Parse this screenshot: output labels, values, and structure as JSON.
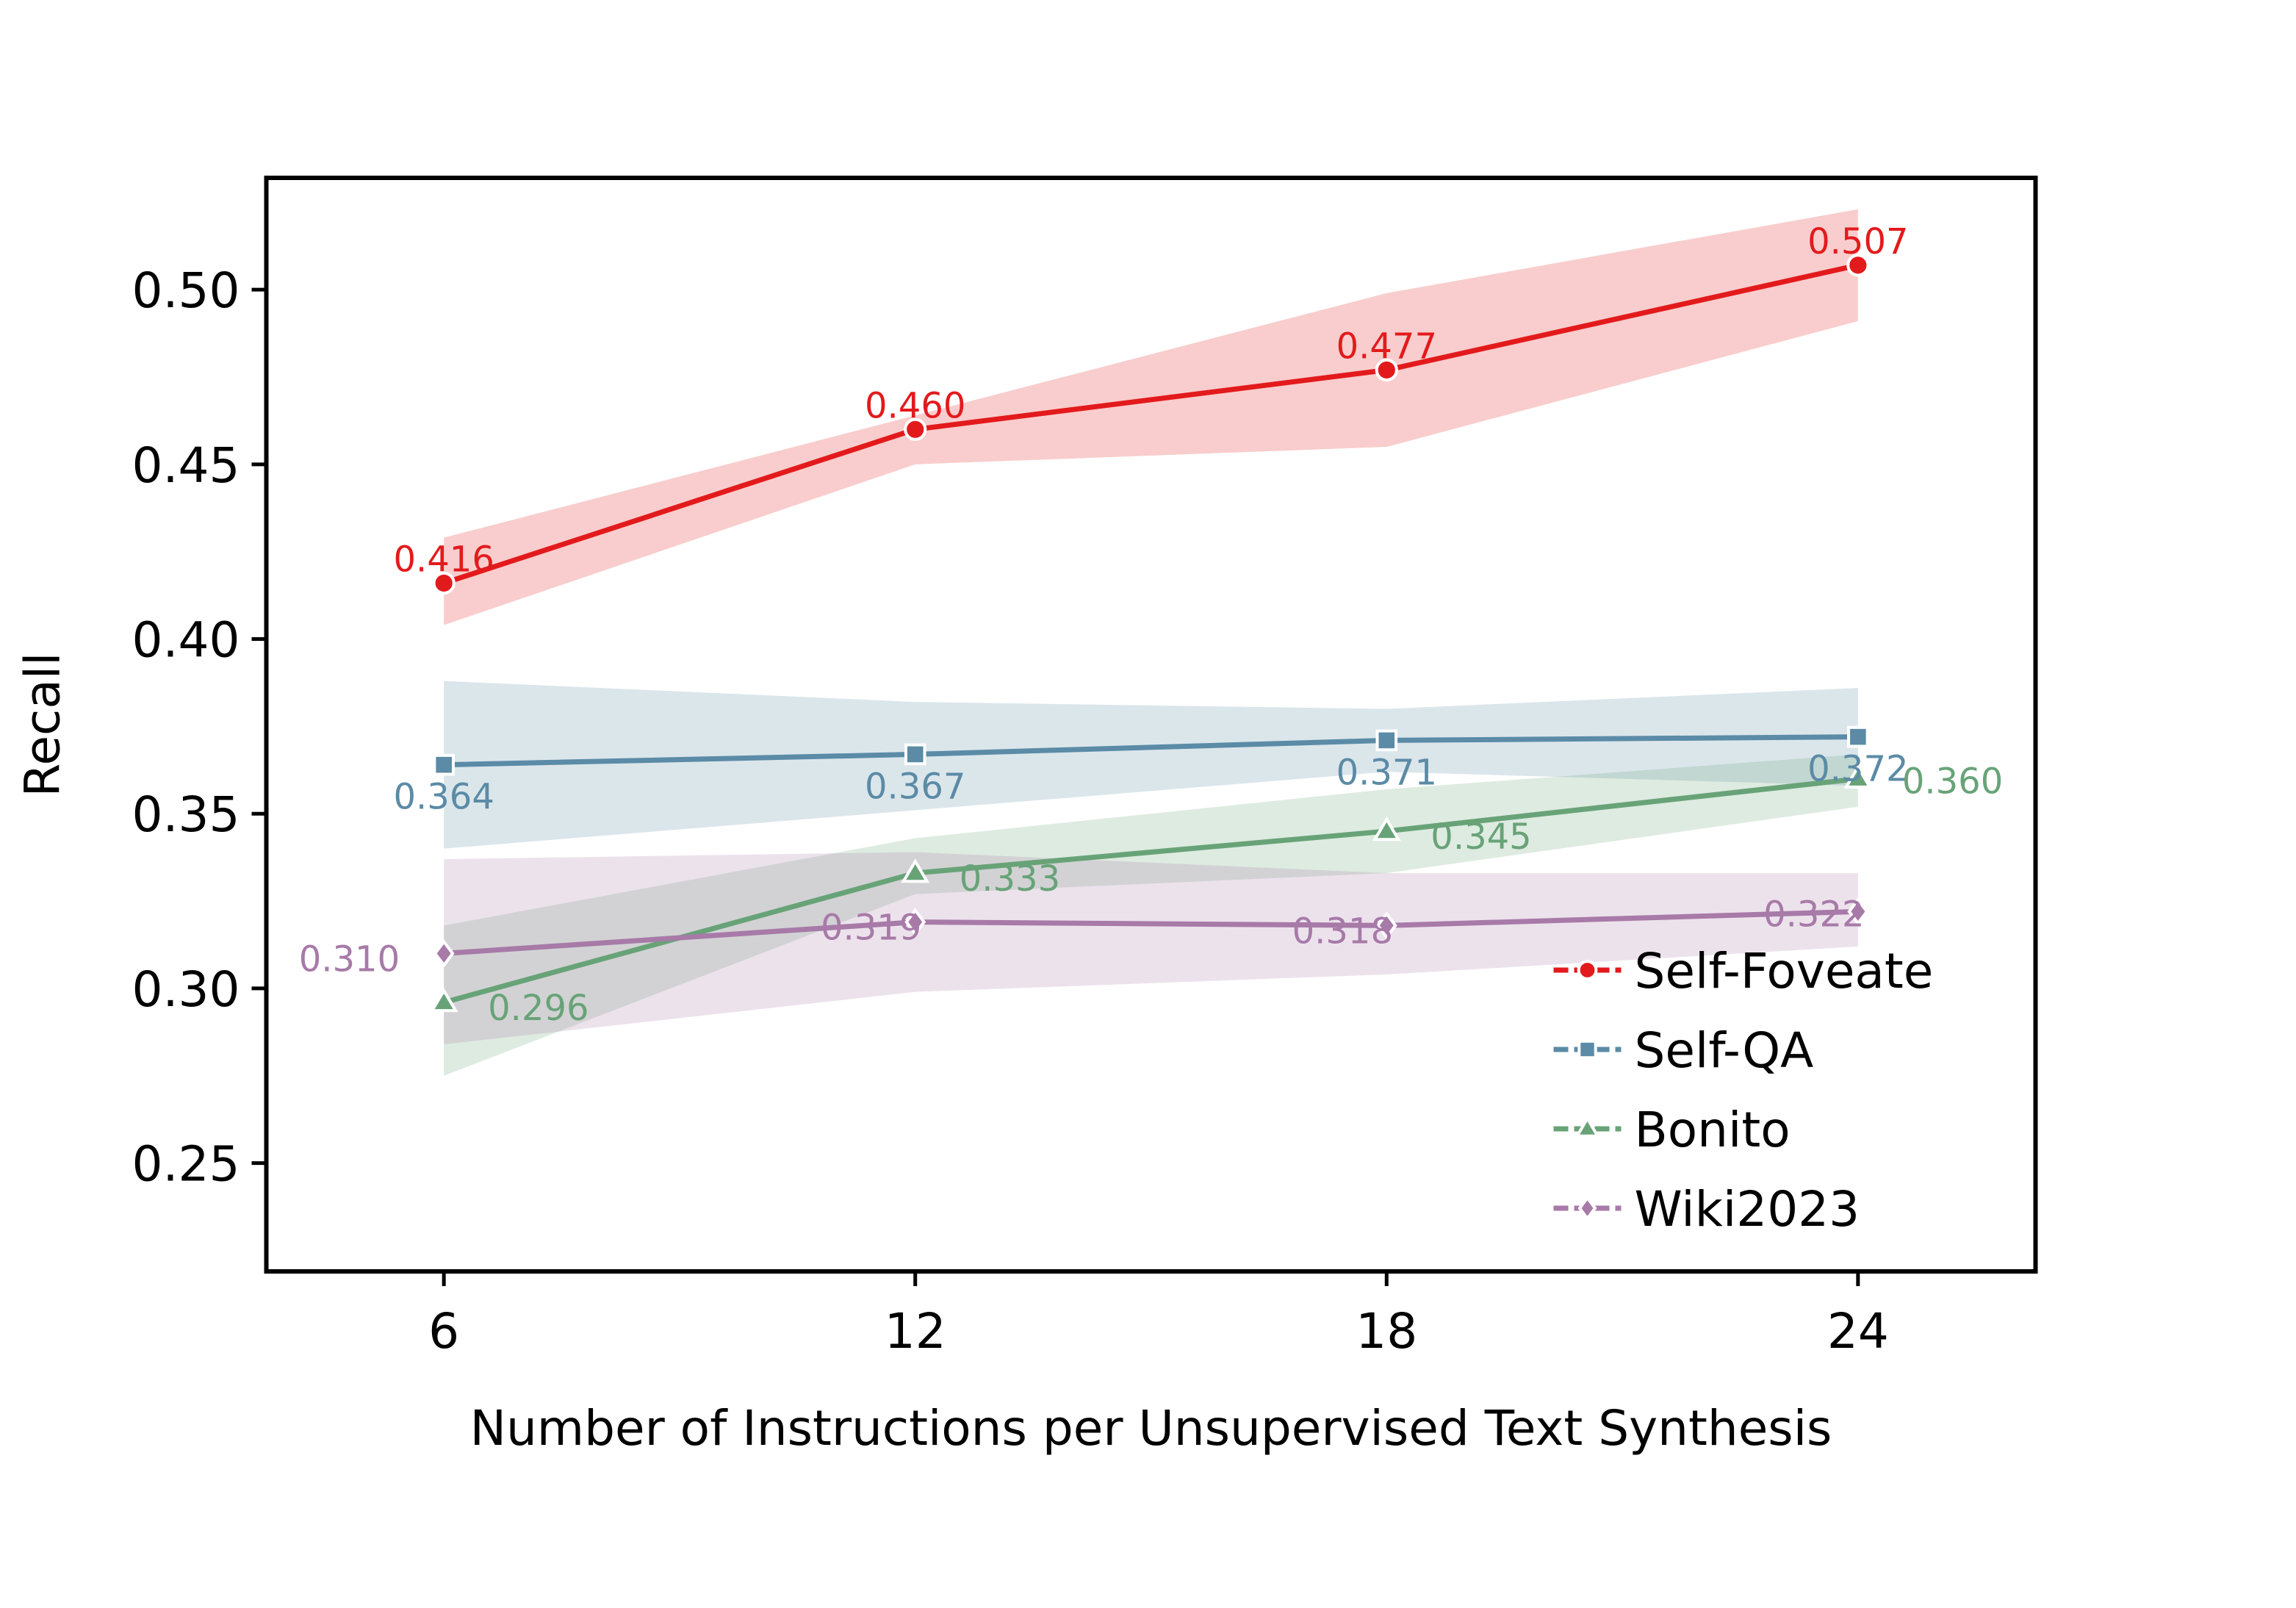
{
  "chart_data": {
    "type": "line",
    "title": "",
    "xlabel": "Number of Instructions per Unsupervised Text Synthesis",
    "ylabel": "Recall",
    "x": [
      6,
      12,
      18,
      24
    ],
    "x_tick_labels": [
      "6",
      "12",
      "18",
      "24"
    ],
    "y_ticks": [
      0.25,
      0.3,
      0.35,
      0.4,
      0.45,
      0.5
    ],
    "y_tick_labels": [
      "0.25",
      "0.30",
      "0.35",
      "0.40",
      "0.45",
      "0.50"
    ],
    "xlim": [
      3.74,
      26.26
    ],
    "ylim": [
      0.219,
      0.532
    ],
    "grid": false,
    "legend_position": "bottom-right",
    "series": [
      {
        "name": "Self-Foveate",
        "color": "#e31a1c",
        "marker": "circle",
        "values": [
          0.416,
          0.46,
          0.477,
          0.507
        ],
        "labels": [
          "0.416",
          "0.460",
          "0.477",
          "0.507"
        ],
        "band_upper": [
          0.429,
          0.464,
          0.499,
          0.523
        ],
        "band_lower": [
          0.404,
          0.45,
          0.455,
          0.491
        ]
      },
      {
        "name": "Self-QA",
        "color": "#5b8ba6",
        "marker": "square",
        "values": [
          0.364,
          0.367,
          0.371,
          0.372
        ],
        "labels": [
          "0.364",
          "0.367",
          "0.371",
          "0.372"
        ],
        "band_upper": [
          0.388,
          0.382,
          0.38,
          0.386
        ],
        "band_lower": [
          0.34,
          0.351,
          0.362,
          0.358
        ]
      },
      {
        "name": "Bonito",
        "color": "#68a378",
        "marker": "triangle",
        "values": [
          0.296,
          0.333,
          0.345,
          0.36
        ],
        "labels": [
          "0.296",
          "0.333",
          "0.345",
          "0.360"
        ],
        "band_upper": [
          0.318,
          0.343,
          0.357,
          0.367
        ],
        "band_lower": [
          0.275,
          0.327,
          0.333,
          0.352
        ]
      },
      {
        "name": "Wiki2023",
        "color": "#a77aa8",
        "marker": "diamond",
        "values": [
          0.31,
          0.319,
          0.318,
          0.322
        ],
        "labels": [
          "0.310",
          "0.319",
          "0.318",
          "0.322"
        ],
        "band_upper": [
          0.337,
          0.339,
          0.333,
          0.333
        ],
        "band_lower": [
          0.284,
          0.299,
          0.304,
          0.312
        ]
      }
    ]
  }
}
